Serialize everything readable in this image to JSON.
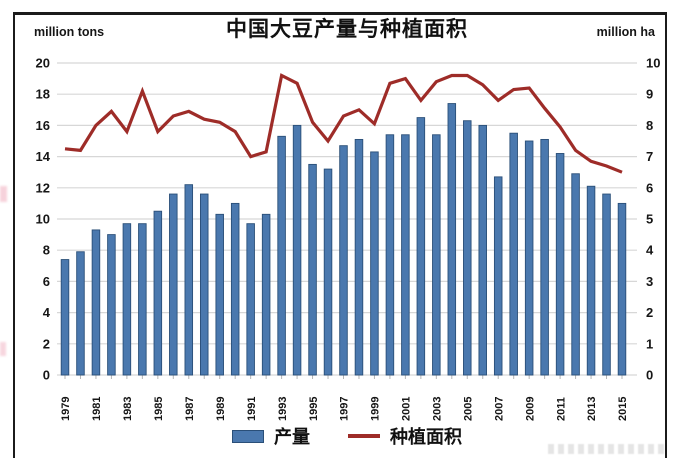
{
  "chart_data": {
    "type": "bar",
    "title": "中国大豆产量与种植面积",
    "categories": [
      "1979",
      "1980",
      "1981",
      "1982",
      "1983",
      "1984",
      "1985",
      "1986",
      "1987",
      "1988",
      "1989",
      "1990",
      "1991",
      "1992",
      "1993",
      "1994",
      "1995",
      "1996",
      "1997",
      "1998",
      "1999",
      "2000",
      "2001",
      "2002",
      "2003",
      "2004",
      "2005",
      "2006",
      "2007",
      "2008",
      "2009",
      "2010",
      "2011",
      "2012",
      "2013",
      "2014",
      "2015"
    ],
    "x_tick_labels_shown": [
      "1979",
      "1981",
      "1983",
      "1985",
      "1987",
      "1989",
      "1991",
      "1993",
      "1995",
      "1997",
      "1999",
      "2001",
      "2003",
      "2005",
      "2007",
      "2009",
      "2011",
      "2013",
      "2015"
    ],
    "series": [
      {
        "name": "产量",
        "type": "bar",
        "axis": "left",
        "color": "#4a78ae",
        "stroke": "#2a4f78",
        "values": [
          7.4,
          7.9,
          9.3,
          9.0,
          9.7,
          9.7,
          10.5,
          11.6,
          12.2,
          11.6,
          10.3,
          11.0,
          9.7,
          10.3,
          15.3,
          16.0,
          13.5,
          13.2,
          14.7,
          15.1,
          14.3,
          15.4,
          15.4,
          16.5,
          15.4,
          17.4,
          16.3,
          16.0,
          12.7,
          15.5,
          15.0,
          15.1,
          14.2,
          12.9,
          12.1,
          11.6,
          11.0
        ]
      },
      {
        "name": "种植面积",
        "type": "line",
        "axis": "right",
        "color": "#9e2c28",
        "values": [
          7.25,
          7.2,
          8.0,
          8.45,
          7.8,
          9.1,
          7.8,
          8.3,
          8.45,
          8.2,
          8.1,
          7.8,
          7.0,
          7.15,
          9.6,
          9.35,
          8.1,
          7.5,
          8.3,
          8.5,
          8.05,
          9.35,
          9.5,
          8.8,
          9.4,
          9.6,
          9.6,
          9.3,
          8.8,
          9.15,
          9.2,
          8.55,
          7.95,
          7.2,
          6.85,
          6.7,
          6.5
        ]
      }
    ],
    "left_axis": {
      "label": "million tons",
      "min": 0,
      "max": 20,
      "tick_step": 2,
      "tick_labels": [
        "0",
        "2",
        "4",
        "6",
        "8",
        "10",
        "12",
        "14",
        "16",
        "18",
        "20"
      ]
    },
    "right_axis": {
      "label": "million ha",
      "min": 0,
      "max": 10,
      "tick_step": 1,
      "tick_labels": [
        "0",
        "1",
        "2",
        "3",
        "4",
        "5",
        "6",
        "7",
        "8",
        "9",
        "10"
      ]
    },
    "grid": true,
    "gridline_color": "#d7d7d7",
    "legend_position": "bottom"
  }
}
